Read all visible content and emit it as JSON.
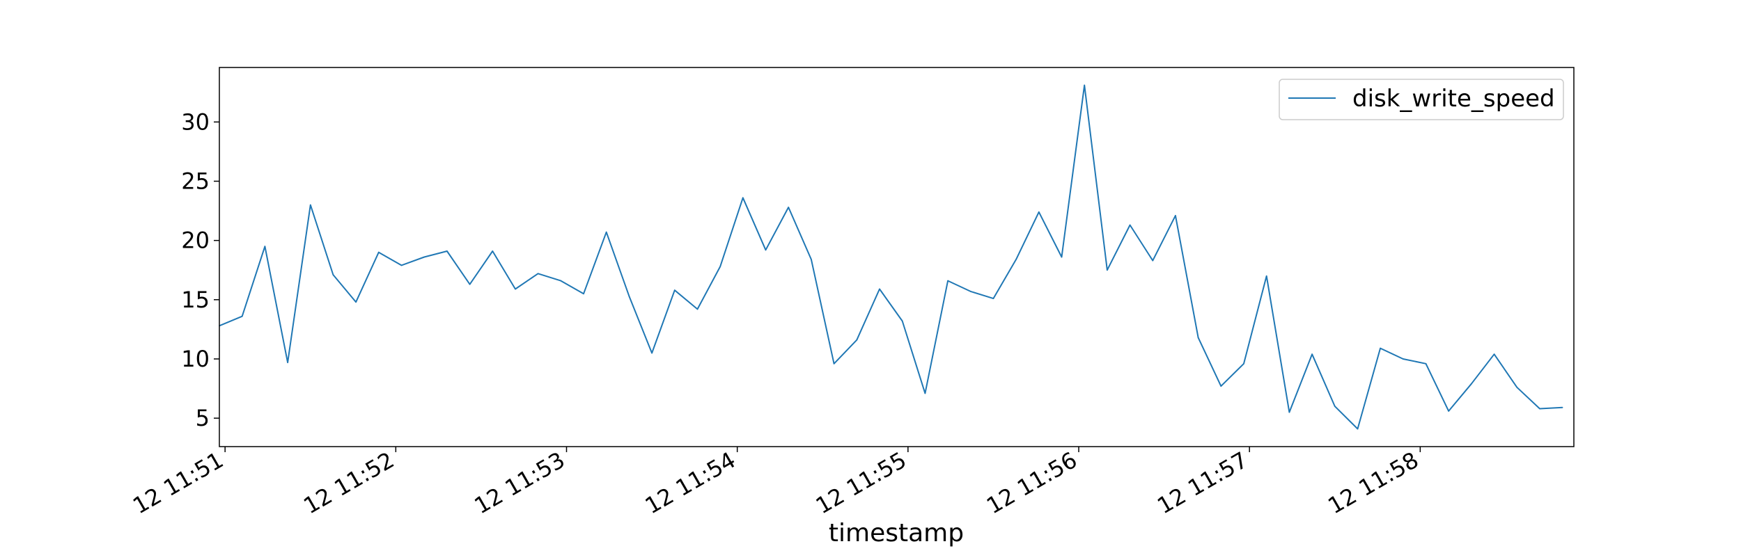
{
  "chart_data": {
    "type": "line",
    "title": "",
    "xlabel": "timestamp",
    "ylabel": "",
    "ylim": [
      2.6,
      34.6
    ],
    "xlim": [
      "11:50:58",
      "11:58:54"
    ],
    "grid": false,
    "legend": {
      "placement": "top-right",
      "entries": [
        "disk_write_speed"
      ]
    },
    "x_ticks": [
      {
        "time": "11:51:00",
        "label": "12 11:51"
      },
      {
        "time": "11:52:00",
        "label": "12 11:52"
      },
      {
        "time": "11:53:00",
        "label": "12 11:53"
      },
      {
        "time": "11:54:00",
        "label": "12 11:54"
      },
      {
        "time": "11:55:00",
        "label": "12 11:55"
      },
      {
        "time": "11:56:00",
        "label": "12 11:56"
      },
      {
        "time": "11:57:00",
        "label": "12 11:57"
      },
      {
        "time": "11:58:00",
        "label": "12 11:58"
      }
    ],
    "y_ticks": [
      5,
      10,
      15,
      20,
      25,
      30
    ],
    "series": [
      {
        "name": "disk_write_speed",
        "color": "#1f77b4",
        "x": [
          "11:50:58",
          "11:51:06",
          "11:51:14",
          "11:51:22",
          "11:51:30",
          "11:51:38",
          "11:51:46",
          "11:51:54",
          "11:52:02",
          "11:52:10",
          "11:52:18",
          "11:52:26",
          "11:52:34",
          "11:52:42",
          "11:52:50",
          "11:52:58",
          "11:53:06",
          "11:53:14",
          "11:53:22",
          "11:53:30",
          "11:53:38",
          "11:53:46",
          "11:53:54",
          "11:54:02",
          "11:54:10",
          "11:54:18",
          "11:54:26",
          "11:54:34",
          "11:54:42",
          "11:54:50",
          "11:54:58",
          "11:55:06",
          "11:55:14",
          "11:55:22",
          "11:55:30",
          "11:55:38",
          "11:55:46",
          "11:55:54",
          "11:56:02",
          "11:56:10",
          "11:56:18",
          "11:56:26",
          "11:56:34",
          "11:56:42",
          "11:56:50",
          "11:56:58",
          "11:57:06",
          "11:57:14",
          "11:57:22",
          "11:57:30",
          "11:57:38",
          "11:57:46",
          "11:57:54",
          "11:58:02",
          "11:58:10",
          "11:58:18",
          "11:58:26",
          "11:58:34",
          "11:58:42",
          "11:58:50"
        ],
        "values": [
          12.8,
          13.6,
          19.5,
          9.7,
          23.0,
          17.1,
          14.8,
          19.0,
          17.9,
          18.6,
          19.1,
          16.3,
          19.1,
          15.9,
          17.2,
          16.6,
          15.5,
          20.7,
          15.3,
          10.5,
          15.8,
          14.2,
          17.8,
          23.6,
          19.2,
          22.8,
          18.4,
          9.6,
          11.6,
          15.9,
          13.2,
          7.1,
          16.6,
          15.7,
          15.1,
          18.4,
          22.4,
          18.6,
          33.1,
          17.5,
          21.3,
          18.3,
          22.1,
          11.8,
          7.7,
          9.6,
          17.0,
          5.5,
          10.4,
          6.0,
          4.1,
          10.9,
          10.0,
          9.6,
          5.6,
          7.9,
          10.4,
          7.6,
          5.8,
          5.9
        ]
      }
    ]
  }
}
